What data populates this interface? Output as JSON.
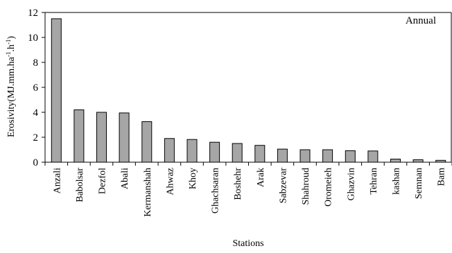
{
  "chart_data": {
    "type": "bar",
    "title": "",
    "annotation": "Annual",
    "xlabel": "Stations",
    "ylabel": "Erosivity(MJ.mm.ha-1.h-1)",
    "ylabel_parts": {
      "base": "Erosivity(MJ.mm.ha",
      "sup1": "-1",
      "mid": ".h",
      "sup2": "-1",
      "end": ")"
    },
    "ylim": [
      0,
      12
    ],
    "yticks": [
      0,
      2,
      4,
      6,
      8,
      10,
      12
    ],
    "grid": false,
    "legend": "none",
    "categories": [
      "Anzali",
      "Babolsar",
      "Dezfol",
      "Abali",
      "Kermanshah",
      "Ahwaz",
      "Khoy",
      "Ghachsaran",
      "Boshehr",
      "Arak",
      "Sabzevar",
      "Shahroud",
      "Oromeieh",
      "Ghazvin",
      "Tehran",
      "kashan",
      "Semnan",
      "Bam"
    ],
    "values": [
      11.5,
      4.2,
      4.0,
      3.95,
      3.25,
      1.9,
      1.82,
      1.6,
      1.5,
      1.35,
      1.05,
      1.0,
      1.0,
      0.92,
      0.9,
      0.25,
      0.2,
      0.15
    ],
    "colors": {
      "bar_fill": "#a6a6a6",
      "bar_stroke": "#000000",
      "axis": "#000000"
    }
  }
}
